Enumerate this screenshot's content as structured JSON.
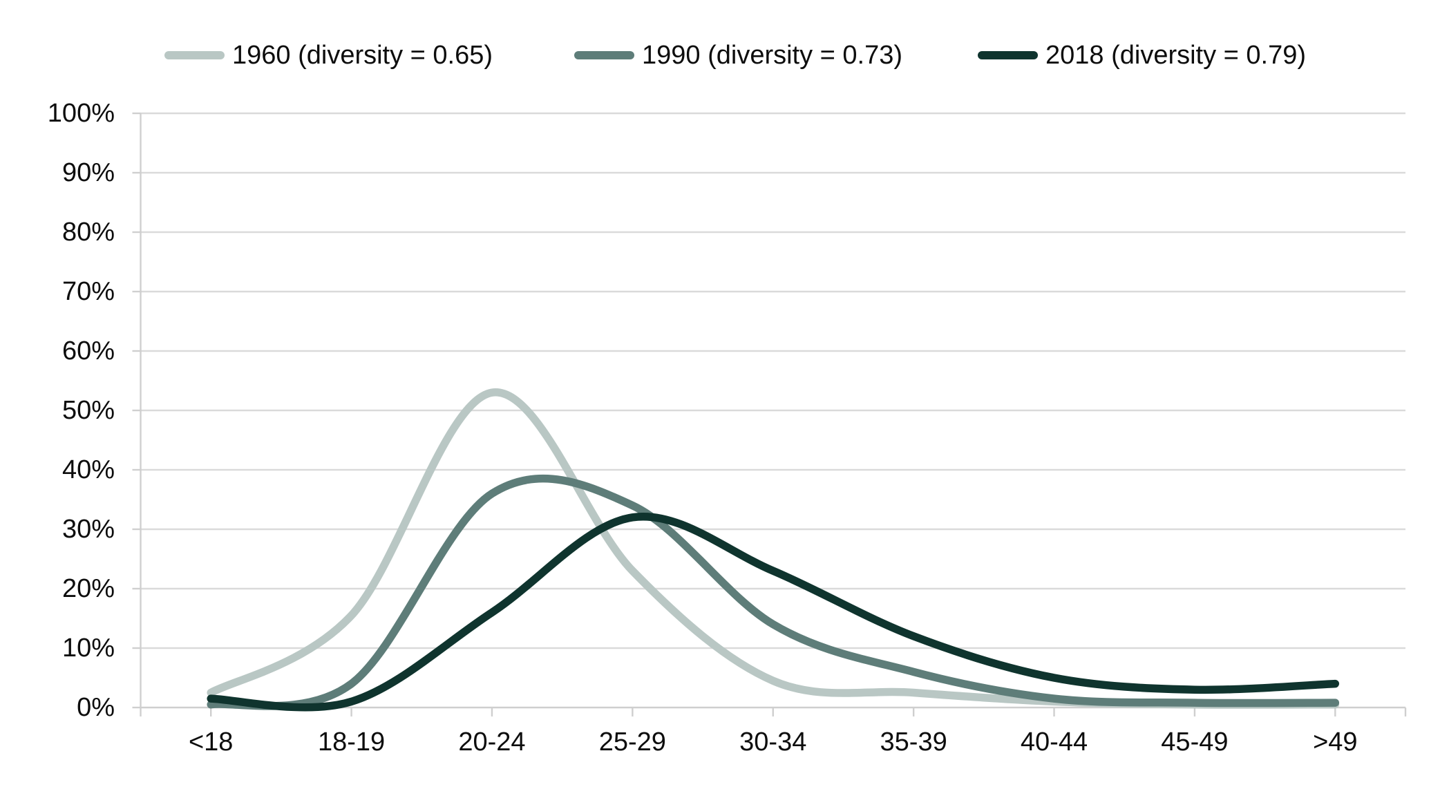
{
  "chart_data": {
    "type": "line",
    "title": "",
    "smoothing": true,
    "grid": true,
    "legend_position": "top",
    "background": "#ffffff",
    "gridline_color": "#dadada",
    "axis_color": "#cfcfcf",
    "text_color": "#0d0d0d",
    "categories": [
      "<18",
      "18-19",
      "20-24",
      "25-29",
      "30-34",
      "35-39",
      "40-44",
      "45-49",
      ">49"
    ],
    "series": [
      {
        "name": "1960",
        "diversity": "0.65",
        "legend": "1960 (diversity = 0.65)",
        "color": "#b9c7c4",
        "values": [
          2.5,
          15.5,
          53,
          23,
          4.5,
          2.5,
          1,
          0.5,
          0.5
        ]
      },
      {
        "name": "1990",
        "diversity": "0.73",
        "legend": "1990 (diversity = 0.73)",
        "color": "#5e7d79",
        "values": [
          0.5,
          4,
          36,
          34,
          14,
          6,
          1.5,
          0.8,
          0.8
        ]
      },
      {
        "name": "2018",
        "diversity": "0.79",
        "legend": "2018 (diversity = 0.79)",
        "color": "#0f342e",
        "values": [
          1.5,
          1,
          16,
          32,
          23,
          12,
          5,
          3,
          4
        ]
      }
    ],
    "x_axis": {
      "tick_labels": [
        "<18",
        "18-19",
        "20-24",
        "25-29",
        "30-34",
        "35-39",
        "40-44",
        "45-49",
        ">49"
      ]
    },
    "y_axis": {
      "min": 0,
      "max": 100,
      "step": 10,
      "tick_labels": [
        "0%",
        "10%",
        "20%",
        "30%",
        "40%",
        "50%",
        "60%",
        "70%",
        "80%",
        "90%",
        "100%"
      ],
      "unit": "%"
    },
    "ylim": [
      0,
      100
    ]
  }
}
